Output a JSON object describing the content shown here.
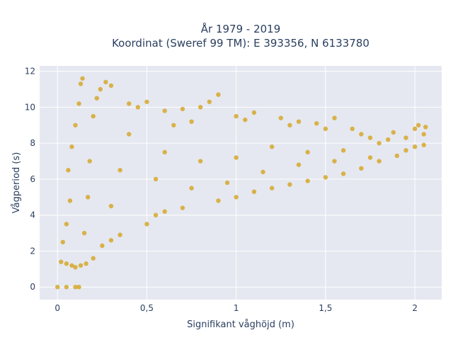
{
  "chart_data": {
    "type": "scatter",
    "title_line1": "År 1979 - 2019",
    "title_line2": "Koordinat (Sweref 99 TM): E 393356, N 6133780",
    "xlabel": "Signifikant våghöjd (m)",
    "ylabel": "Vågperiod (s)",
    "xlim": [
      -0.1,
      2.15
    ],
    "ylim": [
      -0.7,
      12.3
    ],
    "xticks": [
      0,
      0.5,
      1,
      1.5,
      2
    ],
    "xtick_labels": [
      "0",
      "0,5",
      "1",
      "1,5",
      "2"
    ],
    "yticks": [
      0,
      2,
      4,
      6,
      8,
      10,
      12
    ],
    "ytick_labels": [
      "0",
      "2",
      "4",
      "6",
      "8",
      "10",
      "12"
    ],
    "grid": true,
    "marker_color": "#d4a31e",
    "plot_background": "#e5e8f0",
    "points": [
      [
        0.0,
        0.0
      ],
      [
        0.05,
        0.0
      ],
      [
        0.1,
        0.0
      ],
      [
        0.12,
        0.0
      ],
      [
        0.02,
        1.4
      ],
      [
        0.05,
        1.3
      ],
      [
        0.08,
        1.2
      ],
      [
        0.1,
        1.1
      ],
      [
        0.13,
        1.2
      ],
      [
        0.16,
        1.3
      ],
      [
        0.2,
        1.6
      ],
      [
        0.03,
        2.5
      ],
      [
        0.05,
        3.5
      ],
      [
        0.07,
        4.8
      ],
      [
        0.06,
        6.5
      ],
      [
        0.08,
        7.8
      ],
      [
        0.1,
        9.0
      ],
      [
        0.12,
        10.2
      ],
      [
        0.13,
        11.3
      ],
      [
        0.14,
        11.6
      ],
      [
        0.15,
        3.0
      ],
      [
        0.17,
        5.0
      ],
      [
        0.18,
        7.0
      ],
      [
        0.2,
        9.5
      ],
      [
        0.22,
        10.5
      ],
      [
        0.24,
        11.0
      ],
      [
        0.27,
        11.4
      ],
      [
        0.3,
        11.2
      ],
      [
        0.25,
        2.3
      ],
      [
        0.3,
        2.6
      ],
      [
        0.35,
        2.9
      ],
      [
        0.3,
        4.5
      ],
      [
        0.35,
        6.5
      ],
      [
        0.4,
        8.5
      ],
      [
        0.4,
        10.2
      ],
      [
        0.45,
        10.0
      ],
      [
        0.5,
        10.3
      ],
      [
        0.5,
        3.5
      ],
      [
        0.55,
        4.0
      ],
      [
        0.6,
        4.2
      ],
      [
        0.55,
        6.0
      ],
      [
        0.6,
        7.5
      ],
      [
        0.65,
        9.0
      ],
      [
        0.6,
        9.8
      ],
      [
        0.7,
        9.9
      ],
      [
        0.7,
        4.4
      ],
      [
        0.75,
        5.5
      ],
      [
        0.8,
        7.0
      ],
      [
        0.75,
        9.2
      ],
      [
        0.8,
        10.0
      ],
      [
        0.85,
        10.3
      ],
      [
        0.9,
        10.7
      ],
      [
        0.9,
        4.8
      ],
      [
        0.95,
        5.8
      ],
      [
        1.0,
        5.0
      ],
      [
        1.0,
        7.2
      ],
      [
        1.0,
        9.5
      ],
      [
        1.05,
        9.3
      ],
      [
        1.1,
        9.7
      ],
      [
        1.1,
        5.3
      ],
      [
        1.15,
        6.4
      ],
      [
        1.2,
        5.5
      ],
      [
        1.2,
        7.8
      ],
      [
        1.25,
        9.4
      ],
      [
        1.3,
        9.0
      ],
      [
        1.35,
        9.2
      ],
      [
        1.3,
        5.7
      ],
      [
        1.35,
        6.8
      ],
      [
        1.4,
        5.9
      ],
      [
        1.4,
        7.5
      ],
      [
        1.45,
        9.1
      ],
      [
        1.5,
        8.8
      ],
      [
        1.55,
        9.4
      ],
      [
        1.5,
        6.1
      ],
      [
        1.55,
        7.0
      ],
      [
        1.6,
        6.3
      ],
      [
        1.6,
        7.6
      ],
      [
        1.65,
        8.8
      ],
      [
        1.7,
        8.5
      ],
      [
        1.75,
        8.3
      ],
      [
        1.7,
        6.6
      ],
      [
        1.75,
        7.2
      ],
      [
        1.8,
        7.0
      ],
      [
        1.8,
        8.0
      ],
      [
        1.85,
        8.2
      ],
      [
        1.88,
        8.6
      ],
      [
        1.9,
        7.3
      ],
      [
        1.95,
        7.6
      ],
      [
        1.95,
        8.3
      ],
      [
        2.0,
        7.8
      ],
      [
        2.0,
        8.8
      ],
      [
        2.02,
        9.0
      ],
      [
        2.05,
        8.5
      ],
      [
        2.05,
        7.9
      ],
      [
        2.06,
        8.9
      ]
    ]
  }
}
